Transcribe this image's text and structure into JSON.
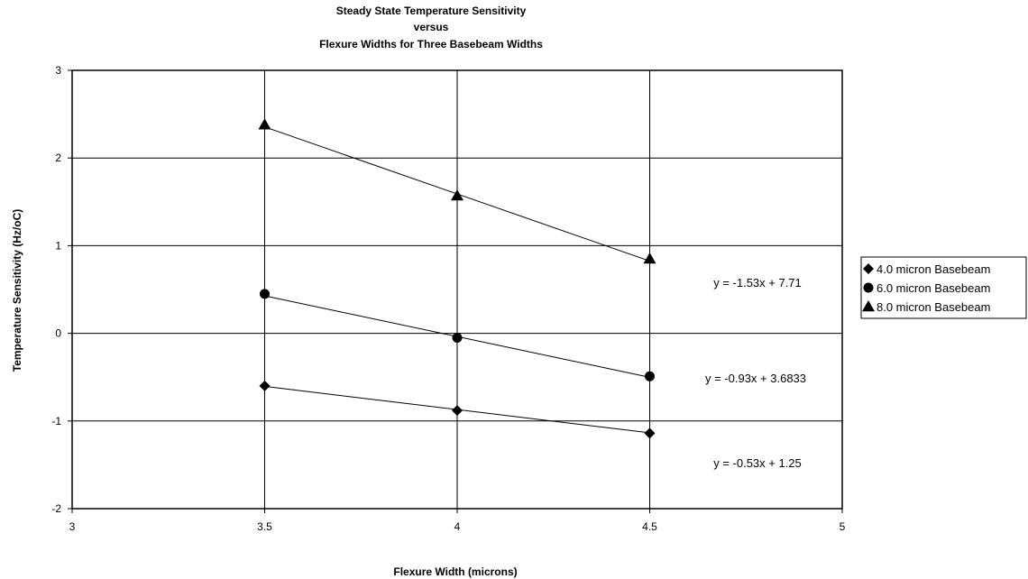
{
  "chart_data": {
    "type": "scatter",
    "title": [
      "Steady State Temperature Sensitivity",
      "versus",
      "Flexure Widths for Three Basebeam Widths"
    ],
    "xlabel": "Flexure Width (microns)",
    "ylabel": "Temperature Sensitivity (Hz/oC)",
    "xlim": [
      3,
      5
    ],
    "ylim": [
      -2,
      3
    ],
    "xticks": [
      "3",
      "3.5",
      "4",
      "4.5",
      "5"
    ],
    "yticks": [
      "-2",
      "-1",
      "0",
      "1",
      "2",
      "3"
    ],
    "grid": true,
    "legend_position": "right",
    "series": [
      {
        "name": "4.0 micron Basebeam",
        "marker": "diamond",
        "x": [
          3.5,
          4.0,
          4.5
        ],
        "y": [
          -0.6,
          -0.88,
          -1.14
        ],
        "trendline": "y = -0.53x + 1.25",
        "trend_slope": -0.53,
        "trend_intercept": 1.25
      },
      {
        "name": "6.0 micron Basebeam",
        "marker": "circle",
        "x": [
          3.5,
          4.0,
          4.5
        ],
        "y": [
          0.45,
          -0.05,
          -0.49
        ],
        "trendline": "y = -0.93x + 3.6833",
        "trend_slope": -0.93,
        "trend_intercept": 3.6833
      },
      {
        "name": "8.0 micron Basebeam",
        "marker": "triangle",
        "x": [
          3.5,
          4.0,
          4.5
        ],
        "y": [
          2.38,
          1.57,
          0.85
        ],
        "trendline": "y = -1.53x + 7.71",
        "trend_slope": -1.53,
        "trend_intercept": 7.71
      }
    ]
  }
}
